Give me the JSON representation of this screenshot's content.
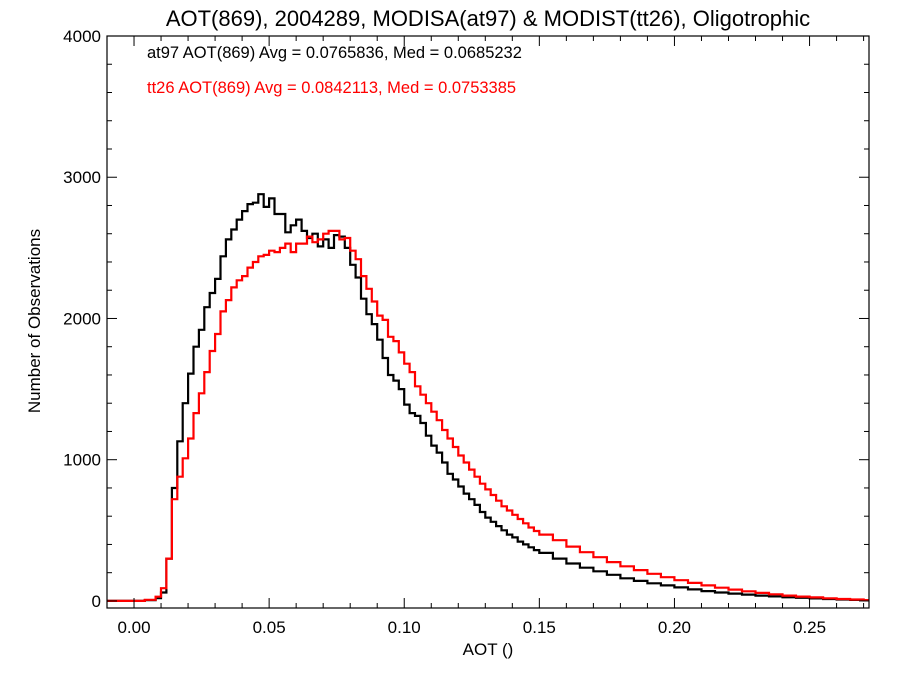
{
  "chart_data": {
    "type": "line",
    "title": "AOT(869), 2004289, MODISA(at97) & MODIST(tt26), Oligotrophic",
    "xlabel": "AOT ()",
    "ylabel": "Number of Observations",
    "xlim": [
      -0.01,
      0.272
    ],
    "ylim": [
      -50,
      4000
    ],
    "xticks": [
      0.0,
      0.05,
      0.1,
      0.15,
      0.2,
      0.25
    ],
    "xtick_labels": [
      "0.00",
      "0.05",
      "0.10",
      "0.15",
      "0.20",
      "0.25"
    ],
    "yticks": [
      0,
      1000,
      2000,
      3000,
      4000
    ],
    "ytick_labels": [
      "0",
      "1000",
      "2000",
      "3000",
      "4000"
    ],
    "step": "histogram",
    "grid": false,
    "legend": {
      "placement": "top-left",
      "entries": [
        {
          "text": "at97 AOT(869) Avg = 0.0765836, Med = 0.0685232",
          "color": "#000000"
        },
        {
          "text": "tt26 AOT(869) Avg = 0.0842113, Med = 0.0753385",
          "color": "#ff0000"
        }
      ]
    },
    "series": [
      {
        "color": "#000000",
        "x": [
          0.0,
          0.004,
          0.008,
          0.01,
          0.012,
          0.014,
          0.016,
          0.018,
          0.02,
          0.022,
          0.024,
          0.026,
          0.028,
          0.03,
          0.032,
          0.034,
          0.036,
          0.038,
          0.04,
          0.042,
          0.044,
          0.046,
          0.048,
          0.05,
          0.052,
          0.054,
          0.056,
          0.058,
          0.06,
          0.062,
          0.064,
          0.066,
          0.068,
          0.07,
          0.072,
          0.074,
          0.076,
          0.078,
          0.08,
          0.082,
          0.084,
          0.086,
          0.088,
          0.09,
          0.092,
          0.094,
          0.096,
          0.098,
          0.1,
          0.102,
          0.104,
          0.106,
          0.108,
          0.11,
          0.112,
          0.114,
          0.116,
          0.118,
          0.12,
          0.122,
          0.124,
          0.126,
          0.128,
          0.13,
          0.132,
          0.134,
          0.136,
          0.138,
          0.14,
          0.142,
          0.144,
          0.146,
          0.148,
          0.15,
          0.155,
          0.16,
          0.165,
          0.17,
          0.175,
          0.18,
          0.185,
          0.19,
          0.195,
          0.2,
          0.205,
          0.21,
          0.215,
          0.22,
          0.225,
          0.23,
          0.235,
          0.24,
          0.245,
          0.25,
          0.255,
          0.26,
          0.265,
          0.27
        ],
        "y": [
          0,
          5,
          20,
          60,
          300,
          800,
          1130,
          1400,
          1610,
          1800,
          1920,
          2080,
          2180,
          2280,
          2440,
          2560,
          2630,
          2700,
          2760,
          2810,
          2820,
          2880,
          2790,
          2850,
          2740,
          2740,
          2610,
          2660,
          2700,
          2620,
          2570,
          2600,
          2510,
          2560,
          2500,
          2590,
          2580,
          2500,
          2380,
          2290,
          2140,
          2030,
          1960,
          1850,
          1720,
          1600,
          1560,
          1500,
          1390,
          1330,
          1310,
          1260,
          1170,
          1100,
          1050,
          980,
          900,
          860,
          810,
          760,
          720,
          680,
          630,
          590,
          560,
          530,
          500,
          470,
          450,
          420,
          400,
          380,
          360,
          340,
          300,
          265,
          235,
          210,
          185,
          160,
          142,
          125,
          110,
          96,
          82,
          70,
          60,
          52,
          45,
          38,
          32,
          26,
          22,
          18,
          14,
          10,
          7,
          4
        ]
      },
      {
        "color": "#ff0000",
        "x": [
          0.0,
          0.004,
          0.008,
          0.01,
          0.012,
          0.014,
          0.016,
          0.018,
          0.02,
          0.022,
          0.024,
          0.026,
          0.028,
          0.03,
          0.032,
          0.034,
          0.036,
          0.038,
          0.04,
          0.042,
          0.044,
          0.046,
          0.048,
          0.05,
          0.052,
          0.054,
          0.056,
          0.058,
          0.06,
          0.062,
          0.064,
          0.066,
          0.068,
          0.07,
          0.072,
          0.074,
          0.076,
          0.078,
          0.08,
          0.082,
          0.084,
          0.086,
          0.088,
          0.09,
          0.092,
          0.094,
          0.096,
          0.098,
          0.1,
          0.102,
          0.104,
          0.106,
          0.108,
          0.11,
          0.112,
          0.114,
          0.116,
          0.118,
          0.12,
          0.122,
          0.124,
          0.126,
          0.128,
          0.13,
          0.132,
          0.134,
          0.136,
          0.138,
          0.14,
          0.142,
          0.144,
          0.146,
          0.148,
          0.15,
          0.155,
          0.16,
          0.165,
          0.17,
          0.175,
          0.18,
          0.185,
          0.19,
          0.195,
          0.2,
          0.205,
          0.21,
          0.215,
          0.22,
          0.225,
          0.23,
          0.235,
          0.24,
          0.245,
          0.25,
          0.255,
          0.26,
          0.265,
          0.27
        ],
        "y": [
          0,
          8,
          30,
          90,
          300,
          720,
          880,
          1010,
          1150,
          1330,
          1470,
          1620,
          1770,
          1890,
          2050,
          2130,
          2220,
          2270,
          2300,
          2360,
          2400,
          2440,
          2450,
          2480,
          2470,
          2500,
          2530,
          2470,
          2530,
          2530,
          2580,
          2540,
          2560,
          2600,
          2620,
          2620,
          2560,
          2570,
          2480,
          2420,
          2300,
          2210,
          2120,
          2020,
          1990,
          1870,
          1840,
          1760,
          1680,
          1620,
          1520,
          1460,
          1400,
          1340,
          1280,
          1210,
          1150,
          1090,
          1030,
          980,
          930,
          880,
          830,
          790,
          750,
          710,
          670,
          640,
          610,
          580,
          550,
          520,
          495,
          470,
          430,
          385,
          345,
          310,
          275,
          245,
          218,
          192,
          168,
          147,
          128,
          110,
          94,
          80,
          68,
          57,
          47,
          38,
          31,
          25,
          19,
          14,
          10,
          6
        ]
      }
    ]
  }
}
